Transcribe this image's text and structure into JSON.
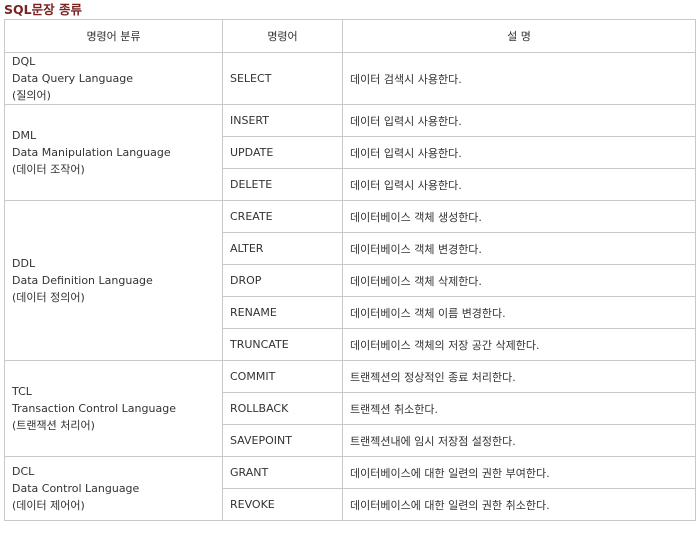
{
  "title": "SQL문장 종류",
  "headers": {
    "category": "명령어 분류",
    "command": "명령어",
    "description": "설 명"
  },
  "groups": [
    {
      "code": "DQL",
      "full_name": "Data Query Language",
      "korean": "(질의어)",
      "rows": [
        {
          "command": "SELECT",
          "description": "데이터 검색시 사용한다."
        }
      ]
    },
    {
      "code": "DML",
      "full_name": "Data Manipulation Language",
      "korean": "(데이터 조작어)",
      "rows": [
        {
          "command": "INSERT",
          "description": "데이터 입력시 사용한다."
        },
        {
          "command": "UPDATE",
          "description": "데이터 입력시 사용한다."
        },
        {
          "command": "DELETE",
          "description": "데이터 입력시 사용한다."
        }
      ]
    },
    {
      "code": "DDL",
      "full_name": "Data Definition Language",
      "korean": "(데이터 정의어)",
      "rows": [
        {
          "command": "CREATE",
          "description": "데이터베이스 객체 생성한다."
        },
        {
          "command": "ALTER",
          "description": "데이터베이스 객체 변경한다."
        },
        {
          "command": "DROP",
          "description": "데이터베이스 객체 삭제한다."
        },
        {
          "command": "RENAME",
          "description": "데이터베이스 객체 이름 변경한다."
        },
        {
          "command": "TRUNCATE",
          "description": "데이터베이스 객체의 저장 공간 삭제한다."
        }
      ]
    },
    {
      "code": "TCL",
      "full_name": "Transaction Control Language",
      "korean": "(트랜잭션 처리어)",
      "rows": [
        {
          "command": "COMMIT",
          "description": "트랜젝션의 정상적인 종료 처리한다."
        },
        {
          "command": "ROLLBACK",
          "description": "트랜젝션 취소한다."
        },
        {
          "command": "SAVEPOINT",
          "description": "트랜젝션내에 임시 저장점 설정한다."
        }
      ]
    },
    {
      "code": "DCL",
      "full_name": "Data Control Language",
      "korean": "(데이터 제어어)",
      "rows": [
        {
          "command": "GRANT",
          "description": "데이터베이스에 대한 일련의 권한 부여한다."
        },
        {
          "command": "REVOKE",
          "description": "데이터베이스에 대한 일련의 권한 취소한다."
        }
      ]
    }
  ]
}
